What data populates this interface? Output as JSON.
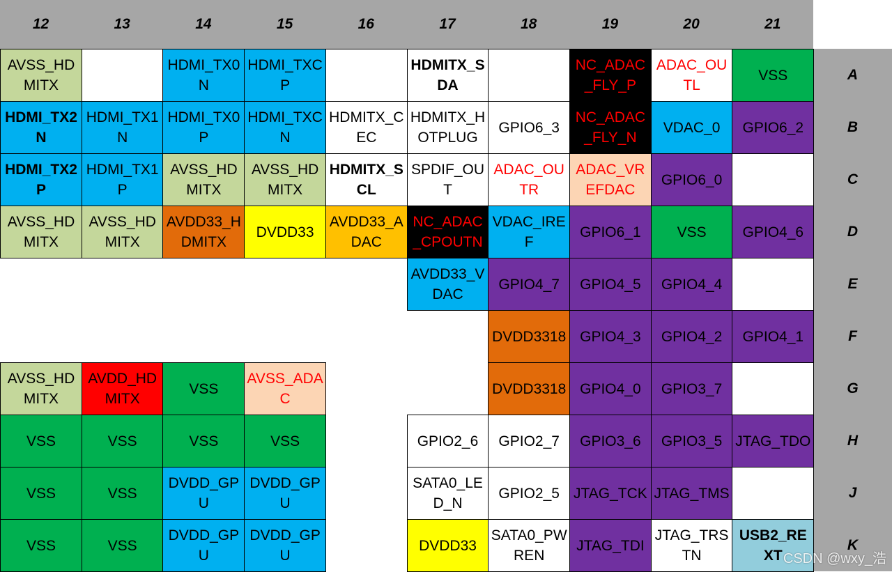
{
  "columns": [
    "12",
    "13",
    "14",
    "15",
    "16",
    "17",
    "18",
    "19",
    "20",
    "21"
  ],
  "rows": [
    "A",
    "B",
    "C",
    "D",
    "E",
    "F",
    "G",
    "H",
    "J",
    "K"
  ],
  "palette": {
    "W": "#ffffff",
    "LG": "#c4d79b",
    "BL": "#00b0f0",
    "BK": "#000000",
    "GR": "#00b050",
    "PU": "#7030a0",
    "PE": "#fcd5b4",
    "OR": "#e26b0a",
    "YE": "#ffff00",
    "AM": "#ffc000",
    "RD": "#ff0000",
    "LB": "#92cddc"
  },
  "text_colors": {
    "k": "#000000",
    "r": "#ff0000"
  },
  "grid": [
    [
      [
        "AVSS_HDMITX",
        "LG"
      ],
      [
        "",
        "W"
      ],
      [
        "HDMI_TX0N",
        "BL"
      ],
      [
        "HDMI_TXCP",
        "BL"
      ],
      [
        "",
        "W"
      ],
      [
        "HDMITX_SDA",
        "W",
        "k",
        true
      ],
      [
        "",
        "W"
      ],
      [
        "NC_ADAC_FLY_P",
        "BK",
        "r"
      ],
      [
        "ADAC_OUTL",
        "W",
        "r"
      ],
      [
        "VSS",
        "GR"
      ]
    ],
    [
      [
        "HDMI_TX2N",
        "BL",
        "k",
        true
      ],
      [
        "HDMI_TX1N",
        "BL"
      ],
      [
        "HDMI_TX0P",
        "BL"
      ],
      [
        "HDMI_TXCN",
        "BL"
      ],
      [
        "HDMITX_CEC",
        "W"
      ],
      [
        "HDMITX_HOTPLUG",
        "W"
      ],
      [
        "GPIO6_3",
        "W"
      ],
      [
        "NC_ADAC_FLY_N",
        "BK",
        "r"
      ],
      [
        "VDAC_0",
        "BL"
      ],
      [
        "GPIO6_2",
        "PU"
      ]
    ],
    [
      [
        "HDMI_TX2P",
        "BL",
        "k",
        true
      ],
      [
        "HDMI_TX1P",
        "BL"
      ],
      [
        "AVSS_HDMITX",
        "LG"
      ],
      [
        "AVSS_HDMITX",
        "LG"
      ],
      [
        "HDMITX_SCL",
        "W",
        "k",
        true
      ],
      [
        "SPDIF_OUT",
        "W"
      ],
      [
        "ADAC_OUTR",
        "W",
        "r"
      ],
      [
        "ADAC_VREFDAC",
        "PE",
        "r"
      ],
      [
        "GPIO6_0",
        "PU"
      ],
      [
        "",
        "W"
      ]
    ],
    [
      [
        "AVSS_HDMITX",
        "LG"
      ],
      [
        "AVSS_HDMITX",
        "LG"
      ],
      [
        "AVDD33_HDMITX",
        "OR"
      ],
      [
        "DVDD33",
        "YE"
      ],
      [
        "AVDD33_ADAC",
        "AM"
      ],
      [
        "NC_ADAC_CPOUTN",
        "BK",
        "r"
      ],
      [
        "VDAC_IREF",
        "BL"
      ],
      [
        "GPIO6_1",
        "PU"
      ],
      [
        "VSS",
        "GR"
      ],
      [
        "GPIO4_6",
        "PU"
      ]
    ],
    [
      null,
      null,
      null,
      null,
      null,
      [
        "AVDD33_VDAC",
        "BL"
      ],
      [
        "GPIO4_7",
        "PU"
      ],
      [
        "GPIO4_5",
        "PU"
      ],
      [
        "GPIO4_4",
        "PU"
      ],
      [
        "",
        "W"
      ]
    ],
    [
      null,
      null,
      null,
      null,
      null,
      null,
      [
        "DVDD3318",
        "OR"
      ],
      [
        "GPIO4_3",
        "PU"
      ],
      [
        "GPIO4_2",
        "PU"
      ],
      [
        "GPIO4_1",
        "PU"
      ]
    ],
    [
      [
        "AVSS_HDMITX",
        "LG"
      ],
      [
        "AVDD_HDMITX",
        "RD"
      ],
      [
        "VSS",
        "GR"
      ],
      [
        "AVSS_ADAC",
        "PE",
        "r"
      ],
      null,
      null,
      [
        "DVDD3318",
        "OR"
      ],
      [
        "GPIO4_0",
        "PU"
      ],
      [
        "GPIO3_7",
        "PU"
      ],
      [
        "",
        "W"
      ]
    ],
    [
      [
        "VSS",
        "GR"
      ],
      [
        "VSS",
        "GR"
      ],
      [
        "VSS",
        "GR"
      ],
      [
        "VSS",
        "GR"
      ],
      null,
      [
        "GPIO2_6",
        "W"
      ],
      [
        "GPIO2_7",
        "W"
      ],
      [
        "GPIO3_6",
        "PU"
      ],
      [
        "GPIO3_5",
        "PU"
      ],
      [
        "JTAG_TDO",
        "PU"
      ]
    ],
    [
      [
        "VSS",
        "GR"
      ],
      [
        "VSS",
        "GR"
      ],
      [
        "DVDD_GPU",
        "BL"
      ],
      [
        "DVDD_GPU",
        "BL"
      ],
      null,
      [
        "SATA0_LED_N",
        "W"
      ],
      [
        "GPIO2_5",
        "W"
      ],
      [
        "JTAG_TCK",
        "PU"
      ],
      [
        "JTAG_TMS",
        "PU"
      ],
      [
        "",
        "W"
      ]
    ],
    [
      [
        "VSS",
        "GR"
      ],
      [
        "VSS",
        "GR"
      ],
      [
        "DVDD_GPU",
        "BL"
      ],
      [
        "DVDD_GPU",
        "BL"
      ],
      null,
      [
        "DVDD33",
        "YE"
      ],
      [
        "SATA0_PWREN",
        "W"
      ],
      [
        "JTAG_TDI",
        "PU"
      ],
      [
        "JTAG_TRSTN",
        "W"
      ],
      [
        "USB2_REXT",
        "LB",
        "k",
        true
      ]
    ]
  ],
  "watermark": "CSDN @wxy_浩"
}
